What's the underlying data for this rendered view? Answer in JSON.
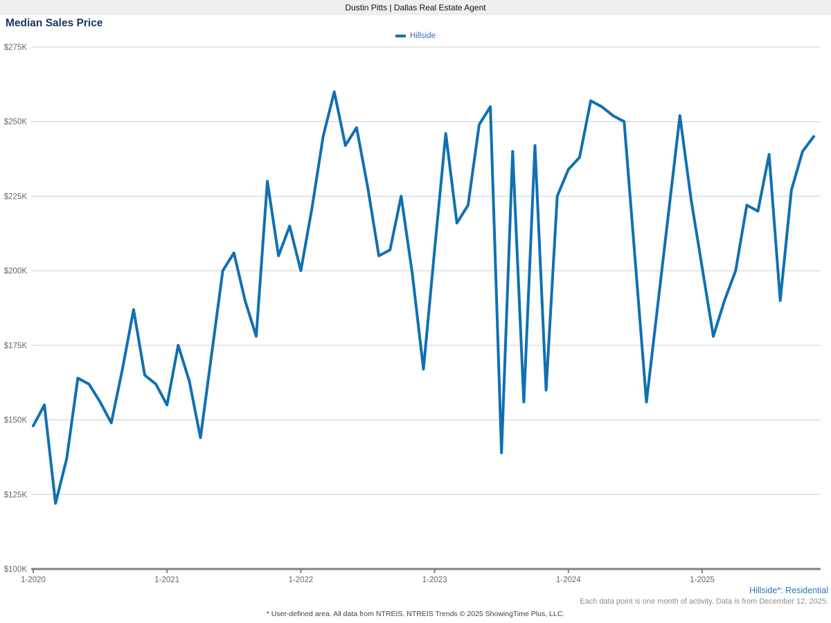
{
  "header": {
    "brand": "Dustin Pitts | Dallas Real Estate Agent"
  },
  "chart": {
    "title": "Median Sales Price",
    "legend": {
      "label": "Hillside"
    }
  },
  "footer": {
    "series_note": "Hillside*: Residential",
    "data_note": "Each data point is one month of activity. Data is from December 12, 2025.",
    "disclaimer": "* User-defined area. All data from NTREIS. NTREIS Trends © 2025 ShowingTime Plus, LLC."
  },
  "colors": {
    "line": "#0f70b2",
    "title": "#17375e",
    "legend_text": "#2e74b5",
    "header_bg": "#efefef",
    "axis_text": "#666666",
    "gridline": "#cccccc",
    "axis_line": "#808080",
    "footnote_blue": "#2e74b5",
    "footnote_gray": "#8c8c8c",
    "footnote_dark": "#3f3f3f"
  },
  "chart_data": {
    "type": "line",
    "title": "Median Sales Price",
    "xlabel": "",
    "ylabel": "",
    "grid": true,
    "legend_position": "top-center",
    "ylim": [
      100000,
      275000
    ],
    "y_ticks": [
      {
        "label": "$275K",
        "value": 275000
      },
      {
        "label": "$250K",
        "value": 250000
      },
      {
        "label": "$225K",
        "value": 225000
      },
      {
        "label": "$200K",
        "value": 200000
      },
      {
        "label": "$175K",
        "value": 175000
      },
      {
        "label": "$150K",
        "value": 150000
      },
      {
        "label": "$125K",
        "value": 125000
      },
      {
        "label": "$100K",
        "value": 100000
      }
    ],
    "x_ticks": [
      {
        "label": "1-2020",
        "index": 0
      },
      {
        "label": "1-2021",
        "index": 12
      },
      {
        "label": "1-2022",
        "index": 24
      },
      {
        "label": "1-2023",
        "index": 36
      },
      {
        "label": "1-2024",
        "index": 48
      },
      {
        "label": "1-2025",
        "index": 60
      }
    ],
    "x": [
      "1-2020",
      "2-2020",
      "3-2020",
      "4-2020",
      "5-2020",
      "6-2020",
      "7-2020",
      "8-2020",
      "9-2020",
      "10-2020",
      "11-2020",
      "12-2020",
      "1-2021",
      "2-2021",
      "3-2021",
      "4-2021",
      "5-2021",
      "6-2021",
      "7-2021",
      "8-2021",
      "9-2021",
      "10-2021",
      "11-2021",
      "12-2021",
      "1-2022",
      "2-2022",
      "3-2022",
      "4-2022",
      "5-2022",
      "6-2022",
      "7-2022",
      "8-2022",
      "9-2022",
      "10-2022",
      "11-2022",
      "12-2022",
      "1-2023",
      "2-2023",
      "3-2023",
      "4-2023",
      "5-2023",
      "6-2023",
      "7-2023",
      "8-2023",
      "9-2023",
      "10-2023",
      "11-2023",
      "12-2023",
      "1-2024",
      "2-2024",
      "3-2024",
      "4-2024",
      "5-2024",
      "6-2024",
      "7-2024",
      "8-2024",
      "9-2024",
      "10-2024",
      "11-2024",
      "12-2024",
      "1-2025",
      "2-2025",
      "3-2025",
      "4-2025",
      "5-2025",
      "6-2025",
      "7-2025",
      "8-2025",
      "9-2025",
      "10-2025",
      "11-2025"
    ],
    "series": [
      {
        "name": "Hillside",
        "color": "#0f70b2",
        "values": [
          148000,
          155000,
          122000,
          137000,
          164000,
          162000,
          156000,
          149000,
          167000,
          187000,
          165000,
          162000,
          155000,
          175000,
          163000,
          144000,
          172000,
          200000,
          206000,
          190000,
          178000,
          230000,
          205000,
          215000,
          200000,
          221000,
          245000,
          260000,
          242000,
          248000,
          228000,
          205000,
          207000,
          225000,
          199000,
          167000,
          207000,
          246000,
          216000,
          222000,
          249000,
          255000,
          139000,
          240000,
          156000,
          242000,
          160000,
          225000,
          234000,
          238000,
          257000,
          255000,
          252000,
          250000,
          203000,
          156000,
          188000,
          220000,
          252000,
          224000,
          201000,
          178000,
          190000,
          200000,
          222000,
          220000,
          239000,
          190000,
          227000,
          240000,
          245000
        ]
      }
    ]
  }
}
